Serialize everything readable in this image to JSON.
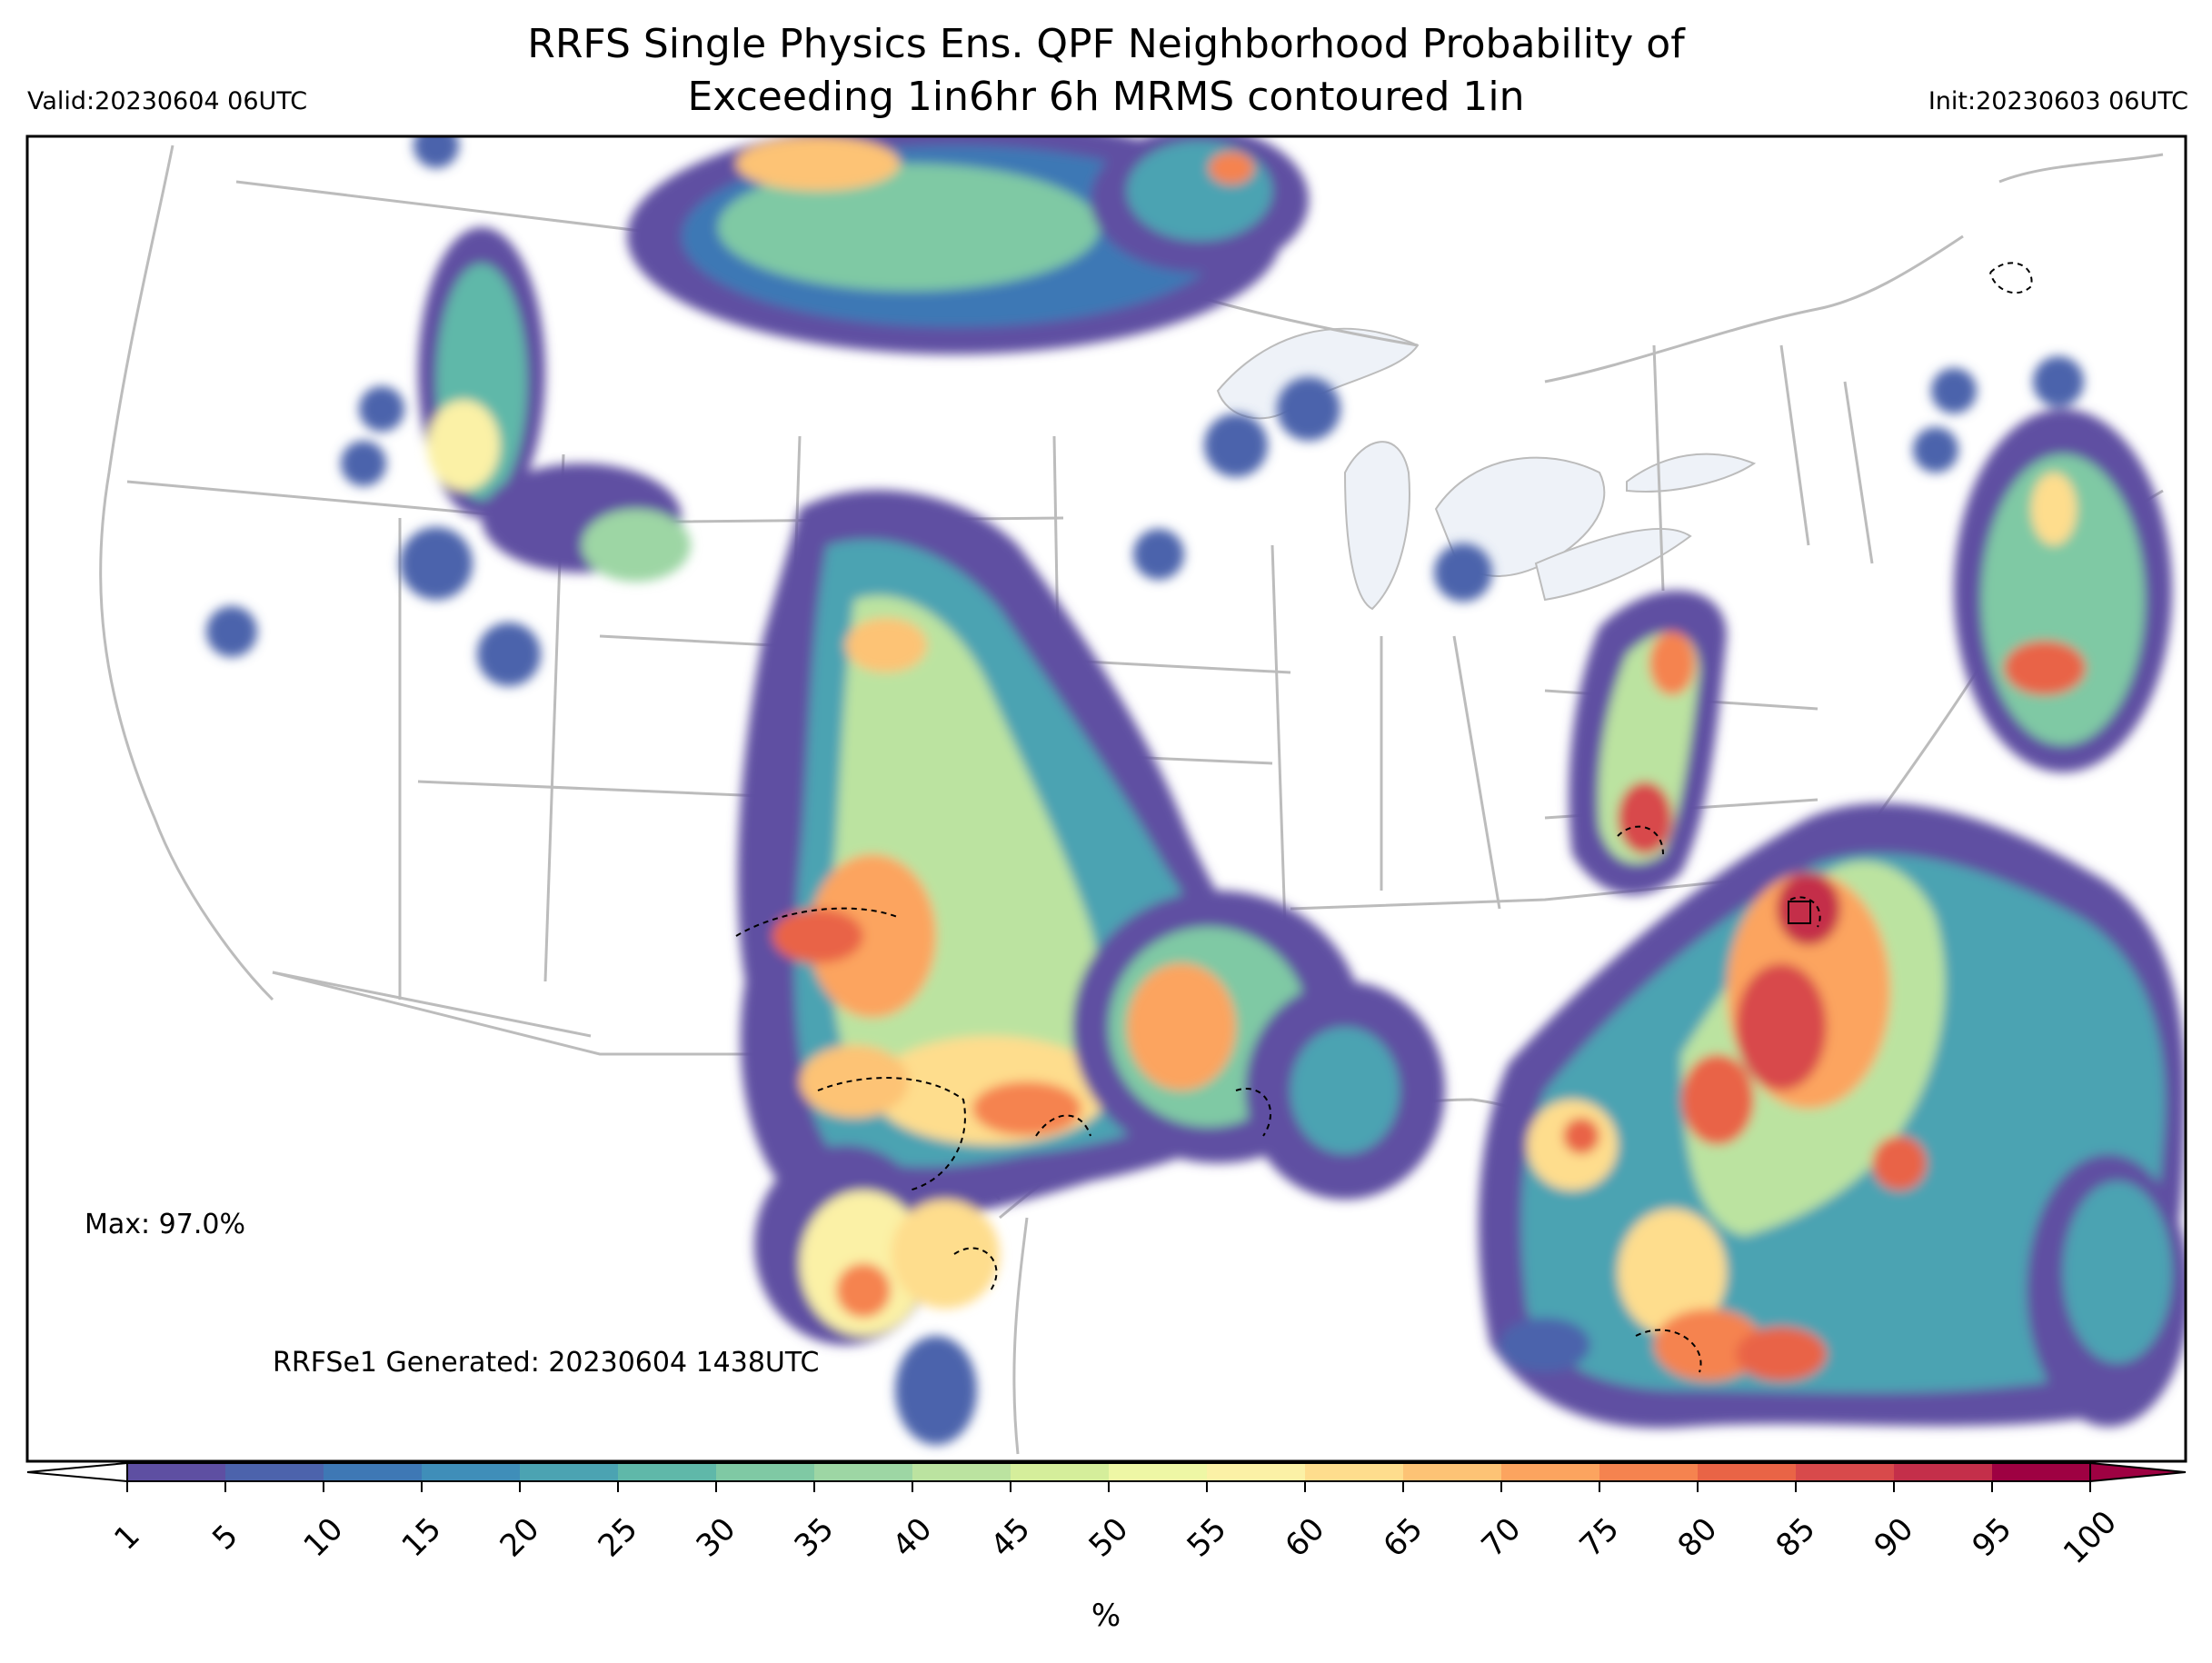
{
  "header": {
    "title_line1": "RRFS Single Physics Ens. QPF Neighborhood Probability of",
    "title_line2": "Exceeding 1in6hr 6h MRMS contoured 1in",
    "valid": "Valid:20230604 06UTC",
    "init": "Init:20230603 06UTC"
  },
  "annotations": {
    "max": "Max: 97.0%",
    "generated": "RRFSe1 Generated: 20230604 1438UTC"
  },
  "colorbar": {
    "label": "%",
    "ticks": [
      "1",
      "5",
      "10",
      "15",
      "20",
      "25",
      "30",
      "35",
      "40",
      "45",
      "50",
      "55",
      "60",
      "65",
      "70",
      "75",
      "80",
      "85",
      "90",
      "95",
      "100"
    ],
    "colors": [
      "#5e4fa2",
      "#4c63ac",
      "#3e78b5",
      "#3f8eb9",
      "#4ba3b2",
      "#5fb8a9",
      "#7fc9a4",
      "#9dd6a4",
      "#bbe3a0",
      "#d5ee9b",
      "#eef7a5",
      "#fbf1a6",
      "#fedd8d",
      "#fdc375",
      "#fca45f",
      "#f5834f",
      "#e96446",
      "#d84a4b",
      "#c42f4a",
      "#9e0142"
    ]
  },
  "map_style": {
    "land": "#ffffff",
    "border_color": "#bcbcbc",
    "lake_color": "#eef2f8",
    "frame_color": "#000000"
  }
}
